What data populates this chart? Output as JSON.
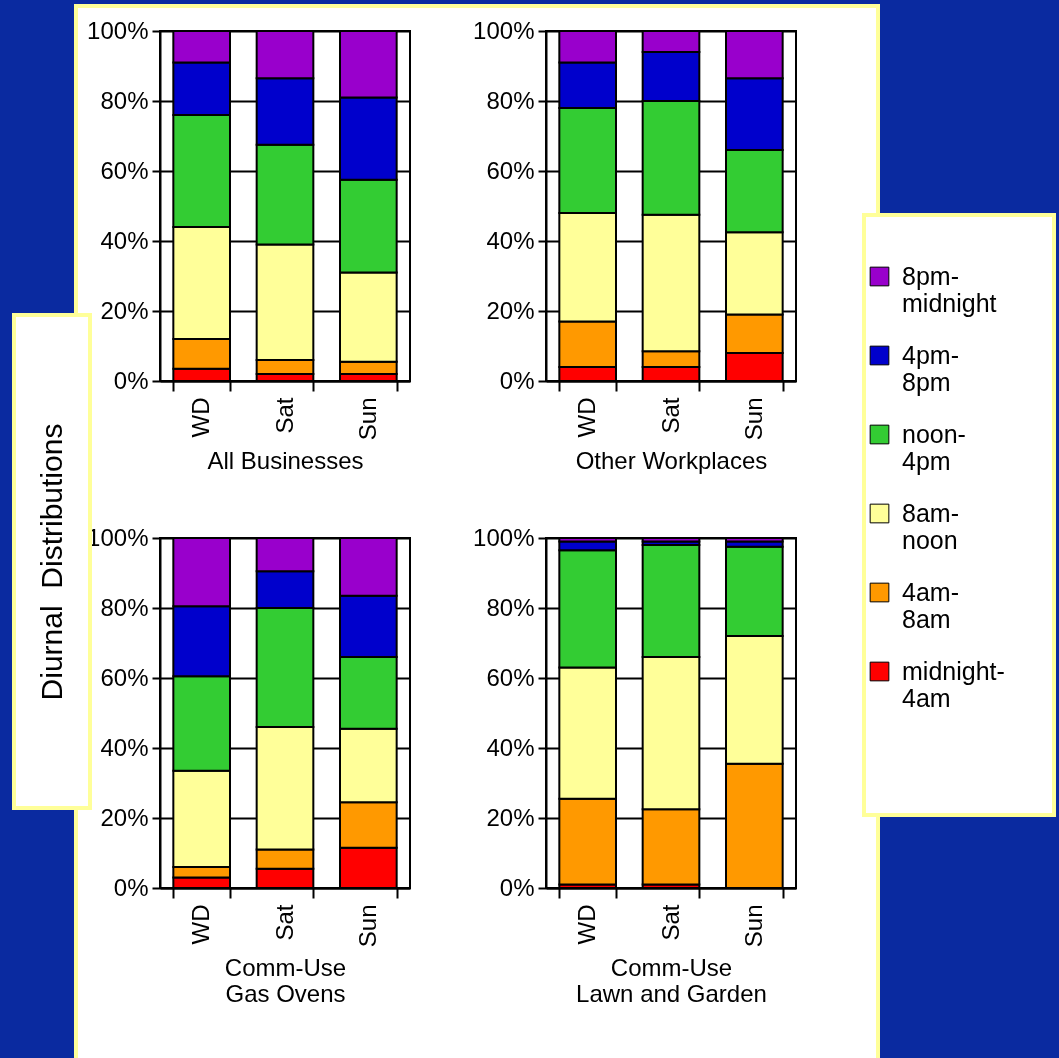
{
  "chart_data": [
    {
      "type": "bar",
      "stacked": true,
      "ylabel": "Diurnal  Distributions",
      "xlabel": "All Businesses",
      "categories": [
        "WD",
        "Sat",
        "Sun"
      ],
      "ylim": [
        0,
        100
      ],
      "yticks": [
        {
          "value": 0,
          "label": "0%"
        },
        {
          "value": 20,
          "label": "20%"
        },
        {
          "value": 40,
          "label": "40%"
        },
        {
          "value": 60,
          "label": "60%"
        },
        {
          "value": 80,
          "label": "80%"
        },
        {
          "value": 100,
          "label": "100%"
        }
      ],
      "grid": "y",
      "legend": "right",
      "series": [
        {
          "name": "midnight-4am",
          "color": "#ff0000",
          "values": [
            3.5,
            2,
            2
          ]
        },
        {
          "name": "4am-8am",
          "color": "#ff9900",
          "values": [
            8.5,
            4,
            3.5
          ]
        },
        {
          "name": "8am-noon",
          "color": "#ffff99",
          "values": [
            32,
            33,
            25.5
          ]
        },
        {
          "name": "noon-4pm",
          "color": "#33cc33",
          "values": [
            32,
            28.5,
            26.5
          ]
        },
        {
          "name": "4pm-8pm",
          "color": "#0000cc",
          "values": [
            15,
            19,
            23.5
          ]
        },
        {
          "name": "8pm-midnight",
          "color": "#9900cc",
          "values": [
            9,
            13.5,
            19
          ]
        }
      ]
    },
    {
      "type": "bar",
      "stacked": true,
      "xlabel": "Other Workplaces",
      "categories": [
        "WD",
        "Sat",
        "Sun"
      ],
      "ylim": [
        0,
        100
      ],
      "yticks": [
        {
          "value": 0,
          "label": "0%"
        },
        {
          "value": 20,
          "label": "20%"
        },
        {
          "value": 40,
          "label": "40%"
        },
        {
          "value": 60,
          "label": "60%"
        },
        {
          "value": 80,
          "label": "80%"
        },
        {
          "value": 100,
          "label": "100%"
        }
      ],
      "grid": "y",
      "legend": "right",
      "series": [
        {
          "name": "midnight-4am",
          "color": "#ff0000",
          "values": [
            4,
            4,
            8
          ]
        },
        {
          "name": "4am-8am",
          "color": "#ff9900",
          "values": [
            13,
            4.5,
            11
          ]
        },
        {
          "name": "8am-noon",
          "color": "#ffff99",
          "values": [
            31,
            39,
            23.5
          ]
        },
        {
          "name": "noon-4pm",
          "color": "#33cc33",
          "values": [
            30,
            32.5,
            23.5
          ]
        },
        {
          "name": "4pm-8pm",
          "color": "#0000cc",
          "values": [
            13,
            14,
            20.5
          ]
        },
        {
          "name": "8pm-midnight",
          "color": "#9900cc",
          "values": [
            9,
            6,
            13.5
          ]
        }
      ]
    },
    {
      "type": "bar",
      "stacked": true,
      "xlabel": "Comm-Use\nGas Ovens",
      "categories": [
        "WD",
        "Sat",
        "Sun"
      ],
      "ylim": [
        0,
        100
      ],
      "yticks": [
        {
          "value": 0,
          "label": "0%"
        },
        {
          "value": 20,
          "label": "20%"
        },
        {
          "value": 40,
          "label": "40%"
        },
        {
          "value": 60,
          "label": "60%"
        },
        {
          "value": 80,
          "label": "80%"
        },
        {
          "value": 100,
          "label": "100%"
        }
      ],
      "grid": "y",
      "legend": "right",
      "series": [
        {
          "name": "midnight-4am",
          "color": "#ff0000",
          "values": [
            3,
            5.5,
            11.5
          ]
        },
        {
          "name": "4am-8am",
          "color": "#ff9900",
          "values": [
            3,
            5.5,
            13
          ]
        },
        {
          "name": "8am-noon",
          "color": "#ffff99",
          "values": [
            27.5,
            35,
            21
          ]
        },
        {
          "name": "noon-4pm",
          "color": "#33cc33",
          "values": [
            27,
            34,
            20.5
          ]
        },
        {
          "name": "4pm-8pm",
          "color": "#0000cc",
          "values": [
            20,
            10.5,
            17.5
          ]
        },
        {
          "name": "8pm-midnight",
          "color": "#9900cc",
          "values": [
            19.5,
            9.5,
            16.5
          ]
        }
      ]
    },
    {
      "type": "bar",
      "stacked": true,
      "xlabel": "Comm-Use\nLawn and Garden",
      "categories": [
        "WD",
        "Sat",
        "Sun"
      ],
      "ylim": [
        0,
        100
      ],
      "yticks": [
        {
          "value": 0,
          "label": "0%"
        },
        {
          "value": 20,
          "label": "20%"
        },
        {
          "value": 40,
          "label": "40%"
        },
        {
          "value": 60,
          "label": "60%"
        },
        {
          "value": 80,
          "label": "80%"
        },
        {
          "value": 100,
          "label": "100%"
        }
      ],
      "grid": "y",
      "legend": "right",
      "series": [
        {
          "name": "midnight-4am",
          "color": "#ff0000",
          "values": [
            1,
            1,
            0
          ]
        },
        {
          "name": "4am-8am",
          "color": "#ff9900",
          "values": [
            24.5,
            21.5,
            35.5
          ]
        },
        {
          "name": "8am-noon",
          "color": "#ffff99",
          "values": [
            37.5,
            43.5,
            36.5
          ]
        },
        {
          "name": "noon-4pm",
          "color": "#33cc33",
          "values": [
            33.5,
            32,
            25.5
          ]
        },
        {
          "name": "4pm-8pm",
          "color": "#0000cc",
          "values": [
            2.5,
            1,
            1.5
          ]
        },
        {
          "name": "8pm-midnight",
          "color": "#9900cc",
          "values": [
            1,
            1,
            1
          ]
        }
      ]
    }
  ]
}
